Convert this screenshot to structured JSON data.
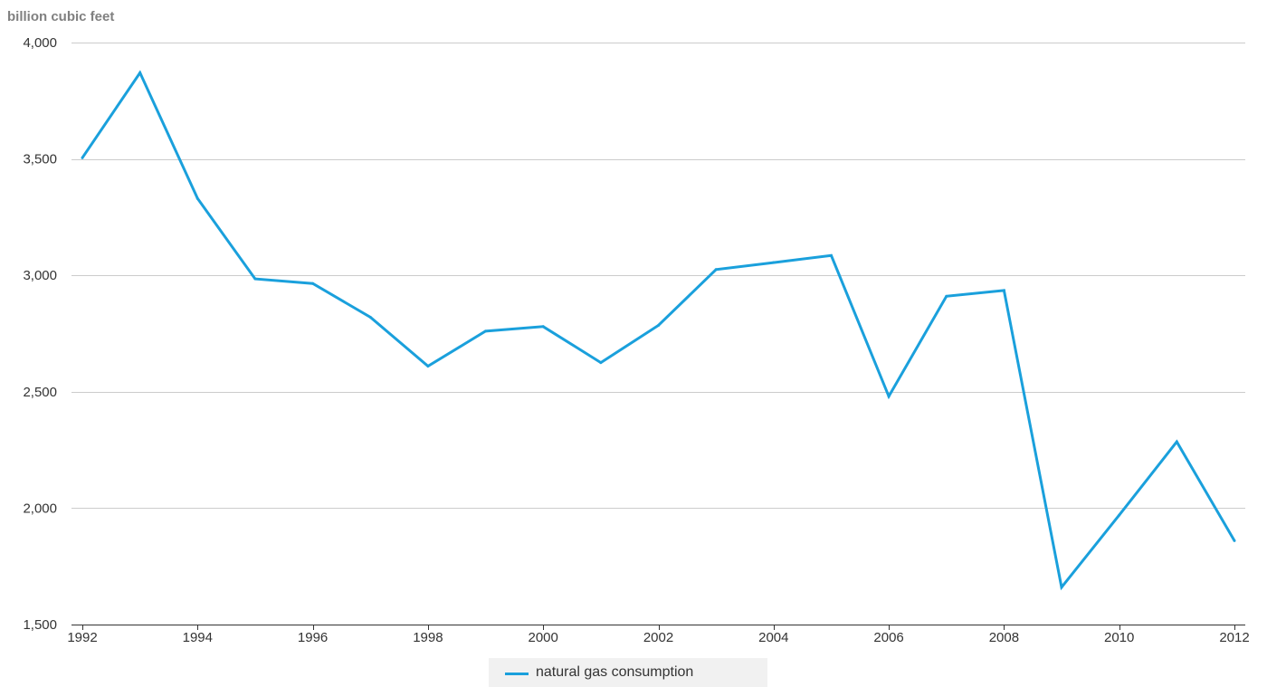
{
  "chart_data": {
    "type": "line",
    "ylabel": "billion cubic feet",
    "xlabel": "",
    "ylim": [
      1500,
      4000
    ],
    "xlim": [
      1992,
      2012
    ],
    "yticks": [
      1500,
      2000,
      2500,
      3000,
      3500,
      4000
    ],
    "ytick_labels": [
      "1,500",
      "2,000",
      "2,500",
      "3,000",
      "3,500",
      "4,000"
    ],
    "xticks": [
      1992,
      1994,
      1996,
      1998,
      2000,
      2002,
      2004,
      2006,
      2008,
      2010,
      2012
    ],
    "xtick_labels": [
      "1992",
      "1994",
      "1996",
      "1998",
      "2000",
      "2002",
      "2004",
      "2006",
      "2008",
      "2010",
      "2012"
    ],
    "grid": true,
    "legend_position": "bottom-center",
    "series": [
      {
        "name": "natural gas consumption",
        "color": "#1aa0dc",
        "x": [
          1992,
          1993,
          1994,
          1995,
          1996,
          1997,
          1998,
          1999,
          2000,
          2001,
          2002,
          2003,
          2004,
          2005,
          2006,
          2007,
          2008,
          2009,
          2010,
          2011,
          2012
        ],
        "values": [
          3505,
          3870,
          3330,
          2985,
          2965,
          2820,
          2610,
          2760,
          2780,
          2625,
          2785,
          3025,
          3055,
          3085,
          2480,
          2910,
          2935,
          1660,
          1970,
          2285,
          1860
        ]
      }
    ]
  }
}
